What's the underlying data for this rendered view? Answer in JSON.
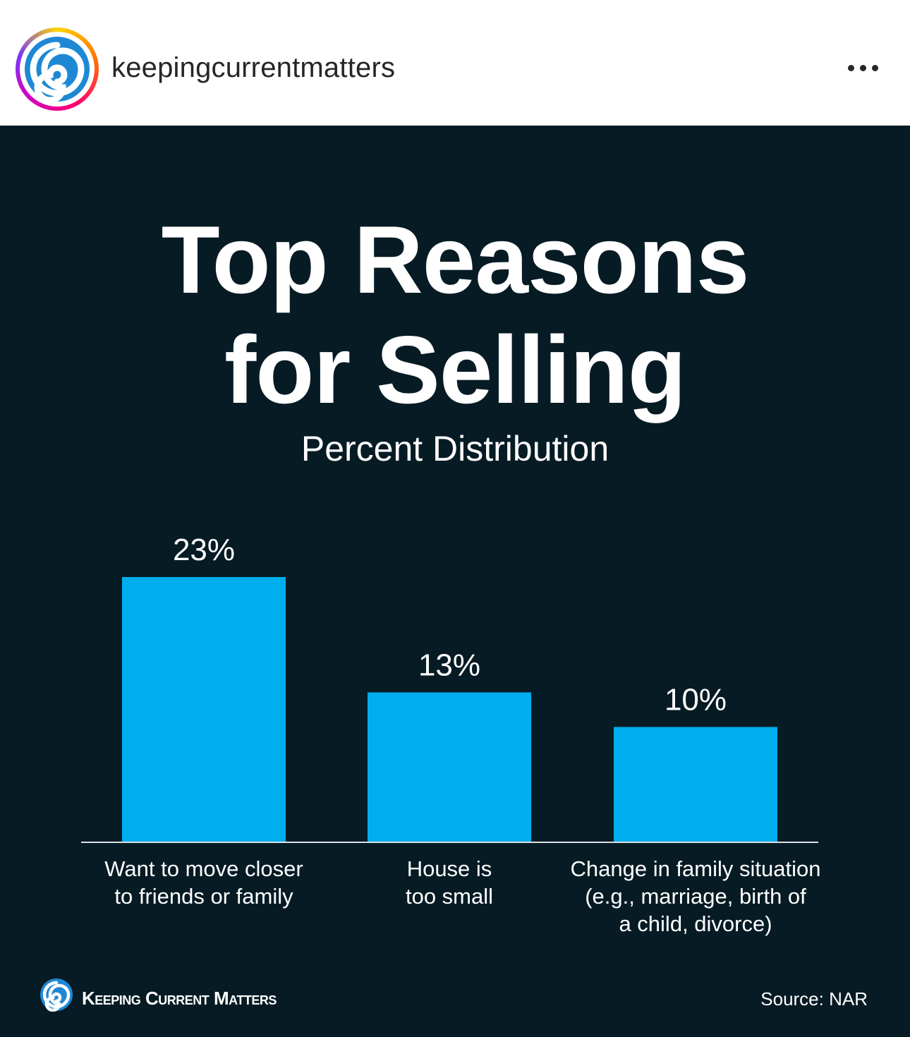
{
  "header": {
    "username": "keepingcurrentmatters",
    "avatar_icon": "swirl-logo-icon",
    "more_icon": "more-options-icon"
  },
  "infographic": {
    "title_line1": "Top Reasons",
    "title_line2": "for Selling",
    "subtitle": "Percent Distribution",
    "brand": "Keeping Current Matters",
    "source": "Source: NAR"
  },
  "colors": {
    "background": "#071b24",
    "bar": "#00aeef",
    "text": "#ffffff",
    "logo_blue": "#1e88d4"
  },
  "chart_data": {
    "type": "bar",
    "title": "Top Reasons for Selling",
    "subtitle": "Percent Distribution",
    "categories": [
      [
        "Want to move closer",
        "to friends or family"
      ],
      [
        "House is",
        "too small"
      ],
      [
        "Change in family situation",
        "(e.g., marriage, birth of",
        "a child, divorce)"
      ]
    ],
    "values": [
      23,
      13,
      10
    ],
    "value_labels": [
      "23%",
      "13%",
      "10%"
    ],
    "unit": "%",
    "ylim": [
      0,
      23
    ],
    "grid": false,
    "legend": "none"
  }
}
